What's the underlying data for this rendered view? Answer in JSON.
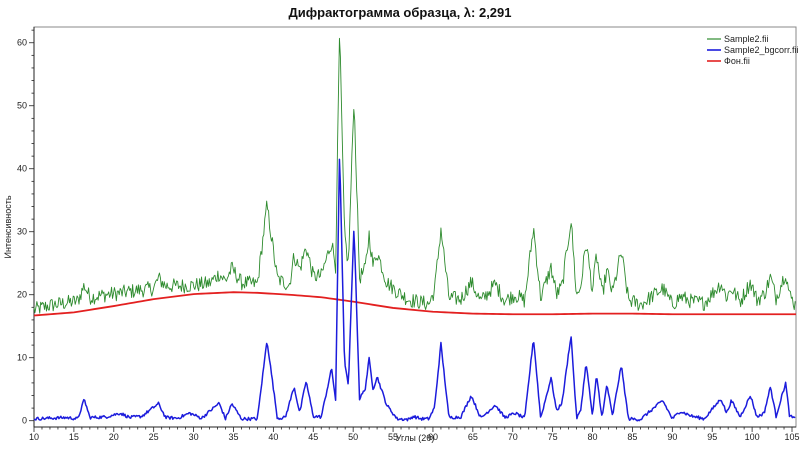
{
  "chart_data": {
    "type": "line",
    "title": "Дифрактограмма образца, λ: 2,291",
    "xlabel": "Углы (2θ)",
    "ylabel": "Интенсивность",
    "xlim": [
      10,
      105.5
    ],
    "ylim": [
      -1,
      62.5
    ],
    "xticks": [
      10,
      15,
      20,
      25,
      30,
      35,
      40,
      45,
      50,
      55,
      60,
      65,
      70,
      75,
      80,
      85,
      90,
      95,
      100,
      105
    ],
    "yticks": [
      0,
      10,
      20,
      30,
      40,
      50,
      60
    ],
    "grid": false,
    "legend": "top-right",
    "series": [
      {
        "name": "Sample2.fii",
        "color": "#2e8b2e",
        "x": [
          10,
          12,
          14,
          15.5,
          16.3,
          17,
          19,
          21,
          23,
          25,
          25.6,
          26.5,
          28,
          30,
          32,
          33.2,
          34,
          34.8,
          36,
          38,
          39.2,
          40.5,
          42,
          42.6,
          43.3,
          44.1,
          45,
          46,
          47.3,
          47.8,
          48.3,
          48.9,
          49.4,
          50.1,
          50.8,
          51.5,
          52,
          52.5,
          53,
          54.2,
          55.5,
          57,
          58.5,
          59.5,
          60.2,
          61,
          62,
          63.5,
          64.8,
          66,
          67.8,
          69,
          70.3,
          71.5,
          72.6,
          73.5,
          74.8,
          75.5,
          76.2,
          77.3,
          78,
          78.5,
          79.2,
          80,
          80.5,
          81.2,
          81.8,
          82.5,
          83.6,
          84.5,
          86,
          88.8,
          90,
          91,
          92.5,
          94,
          96.1,
          96.8,
          97.4,
          98.5,
          99.8,
          100.6,
          101.5,
          102.3,
          103,
          104.2,
          104.7,
          105.5
        ],
        "y": [
          17.6,
          18.3,
          18.7,
          19.0,
          21.5,
          19.6,
          20.0,
          20.3,
          20.7,
          21.0,
          22.6,
          21.4,
          21.4,
          21.5,
          21.8,
          23.3,
          22.2,
          24.2,
          21.9,
          21.7,
          34.2,
          22.5,
          21.5,
          26.2,
          24.0,
          27.6,
          22.9,
          23.0,
          28.4,
          24.6,
          62.0,
          30.0,
          24.5,
          51.3,
          22.7,
          24.0,
          29.6,
          24.5,
          26.8,
          22.0,
          20.5,
          19.2,
          18.8,
          18.5,
          20.7,
          30.5,
          19.5,
          19.3,
          22.0,
          18.9,
          21.7,
          19.1,
          20.0,
          19.0,
          30.7,
          19.5,
          24.3,
          20.0,
          21.4,
          32.0,
          19.7,
          21.2,
          28.3,
          20.6,
          26.4,
          19.9,
          23.9,
          20.2,
          26.8,
          19.2,
          18.4,
          21.0,
          18.4,
          19.7,
          18.9,
          18.7,
          21.8,
          19.6,
          21.0,
          18.9,
          22.0,
          19.2,
          20.0,
          22.8,
          19.5,
          23.6,
          19.9,
          18.2
        ]
      },
      {
        "name": "Sample2_bgcorr.fii",
        "color": "#1c1cdc",
        "x": [
          10,
          12,
          14,
          15.5,
          16.3,
          17,
          19,
          20.8,
          22,
          23.5,
          25.6,
          26.5,
          28,
          29.5,
          31,
          33.2,
          34,
          34.8,
          36,
          38,
          39.2,
          40.5,
          41.5,
          42.6,
          43.3,
          44.1,
          45,
          46,
          47.3,
          47.8,
          48.3,
          48.9,
          49.4,
          50.1,
          50.8,
          51.5,
          52,
          52.5,
          53,
          54.2,
          55.5,
          57,
          57.5,
          58.5,
          59.5,
          60.2,
          61,
          62,
          63.5,
          64.8,
          66,
          67.8,
          69,
          70.3,
          71.5,
          72.6,
          73.5,
          74.8,
          75.5,
          76.2,
          77.3,
          78,
          78.5,
          79.2,
          80,
          80.5,
          81.2,
          81.8,
          82.5,
          83.6,
          84.5,
          86,
          88.8,
          90,
          91,
          92.5,
          94,
          96.1,
          96.8,
          97.4,
          98.5,
          99.8,
          100.6,
          101.5,
          102.3,
          103,
          104.2,
          104.7,
          105.5
        ],
        "y": [
          0.3,
          0.4,
          0.5,
          0.3,
          3.4,
          0.5,
          0.6,
          1.2,
          0.5,
          0.7,
          2.7,
          0.5,
          0.4,
          1.2,
          0.4,
          2.8,
          0.3,
          2.7,
          0.3,
          0.3,
          12.8,
          0.4,
          0.5,
          5.4,
          1.2,
          6.3,
          0.7,
          0.6,
          8.3,
          3.3,
          43.1,
          9.8,
          5.3,
          31.0,
          3.5,
          5.0,
          9.8,
          5.0,
          7.0,
          2.5,
          0.3,
          0.2,
          0.7,
          0.3,
          0.3,
          2.1,
          12.2,
          0.5,
          0.6,
          4.0,
          0.4,
          2.5,
          0.5,
          1.2,
          0.4,
          13.1,
          0.4,
          6.8,
          1.5,
          3.0,
          13.6,
          0.4,
          1.5,
          9.2,
          0.6,
          7.3,
          0.4,
          5.8,
          0.7,
          8.8,
          0.3,
          0.2,
          3.2,
          0.3,
          1.5,
          0.7,
          0.3,
          3.5,
          1.2,
          3.2,
          0.6,
          4.0,
          0.6,
          1.2,
          5.4,
          0.7,
          6.0,
          0.7,
          0.3
        ]
      },
      {
        "name": "Фон.fii",
        "color": "#e32020",
        "x": [
          10,
          15,
          20,
          25,
          30,
          35,
          38,
          42,
          46,
          50,
          55,
          60,
          65,
          70,
          75,
          80,
          85,
          90,
          95,
          100,
          105.5
        ],
        "y": [
          16.7,
          17.2,
          18.2,
          19.3,
          20.1,
          20.4,
          20.3,
          20.0,
          19.6,
          18.9,
          17.9,
          17.3,
          17.0,
          16.9,
          16.9,
          17.0,
          17.0,
          16.9,
          16.9,
          16.9,
          16.9
        ]
      }
    ]
  }
}
